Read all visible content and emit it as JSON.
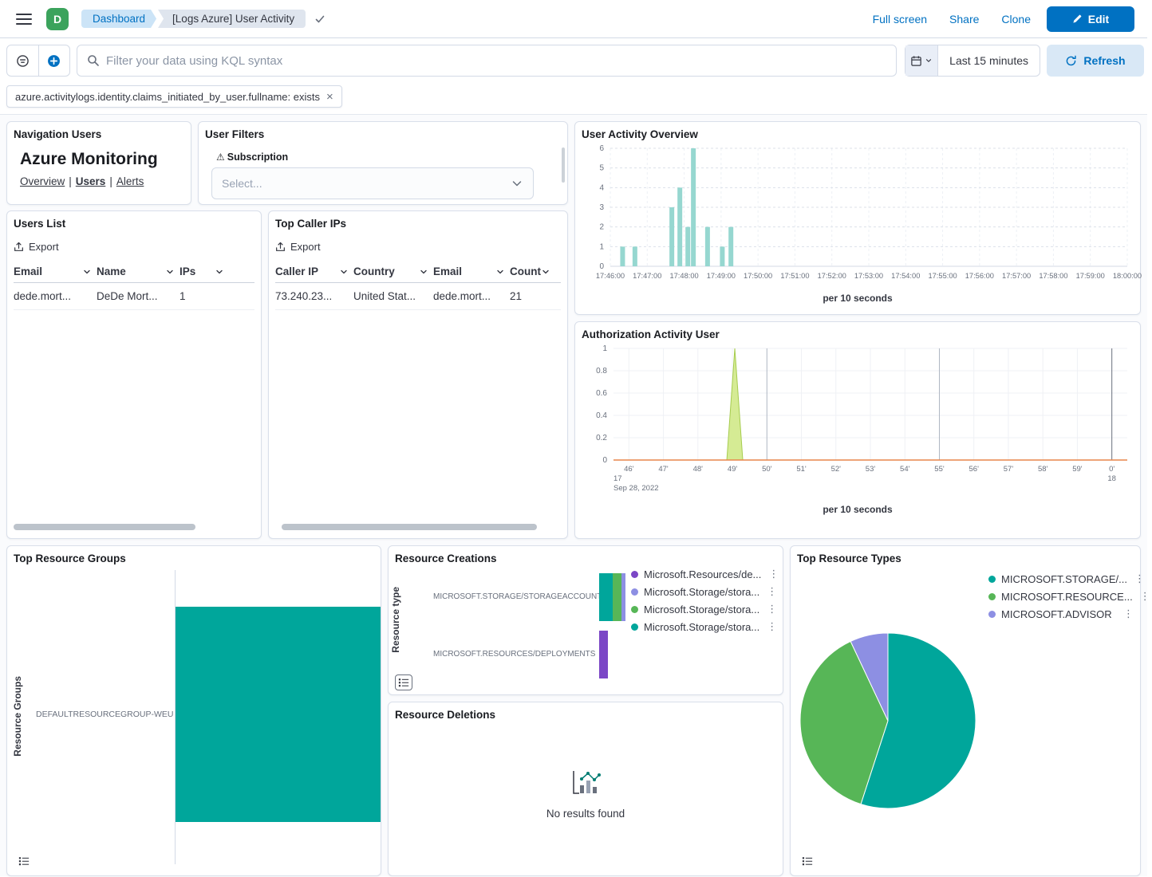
{
  "icons": {
    "kebab": "⋮",
    "close": "×",
    "warning": "⚠"
  },
  "colors": {
    "accent": "#0071C2",
    "teal": "#00A69B",
    "green": "#57B657",
    "lavender": "#8D8FE3",
    "purple": "#7B47C6",
    "avatar_green": "#3BA35C",
    "histogram_teal": "#96D7D0",
    "spike_green": "#D5EB94",
    "baseline_orange": "#E8864B"
  },
  "header": {
    "space_initial": "D",
    "breadcrumb_dashboard": "Dashboard",
    "breadcrumb_current": "[Logs Azure] User Activity",
    "full_screen": "Full screen",
    "share": "Share",
    "clone": "Clone",
    "edit": "Edit"
  },
  "query_bar": {
    "search_placeholder": "Filter your data using KQL syntax",
    "time_range": "Last 15 minutes",
    "refresh": "Refresh",
    "filter_pill": "azure.activitylogs.identity.claims_initiated_by_user.fullname: exists"
  },
  "nav_panel": {
    "title": "Navigation Users",
    "heading": "Azure Monitoring",
    "link_overview": "Overview",
    "link_users": "Users",
    "link_alerts": "Alerts",
    "separator": "|"
  },
  "user_filters_panel": {
    "title": "User Filters",
    "field_label": "Subscription",
    "select_placeholder": "Select..."
  },
  "users_list_panel": {
    "title": "Users List",
    "export_label": "Export",
    "columns": [
      "Email",
      "Name",
      "IPs"
    ],
    "rows": [
      [
        "dede.mort...",
        "DeDe Mort...",
        "1"
      ]
    ]
  },
  "top_caller_panel": {
    "title": "Top Caller IPs",
    "export_label": "Export",
    "columns": [
      "Caller IP",
      "Country",
      "Email",
      "Count"
    ],
    "rows": [
      [
        "73.240.23...",
        "United Stat...",
        "dede.mort...",
        "21"
      ]
    ]
  },
  "resource_deletions_panel": {
    "title": "Resource Deletions",
    "empty_message": "No results found"
  },
  "chart_data": [
    {
      "id": "user_activity_overview",
      "type": "bar",
      "title": "User Activity Overview",
      "caption": "per 10 seconds",
      "ylim": [
        0,
        6
      ],
      "y_ticks": [
        0,
        1,
        2,
        3,
        4,
        5,
        6
      ],
      "x_ticks": [
        "17:46:00",
        "17:47:00",
        "17:48:00",
        "17:49:00",
        "17:50:00",
        "17:51:00",
        "17:52:00",
        "17:53:00",
        "17:54:00",
        "17:55:00",
        "17:56:00",
        "17:57:00",
        "17:58:00",
        "17:59:00",
        "18:00:00"
      ],
      "x_range_seconds": 840,
      "bar_interval_seconds": 10,
      "bar_color": "#96D7D0",
      "bars": [
        {
          "offset_s": 20,
          "value": 1
        },
        {
          "offset_s": 40,
          "value": 1
        },
        {
          "offset_s": 100,
          "value": 3
        },
        {
          "offset_s": 113,
          "value": 4
        },
        {
          "offset_s": 126,
          "value": 2
        },
        {
          "offset_s": 135,
          "value": 6
        },
        {
          "offset_s": 158,
          "value": 2
        },
        {
          "offset_s": 182,
          "value": 1
        },
        {
          "offset_s": 196,
          "value": 2
        }
      ]
    },
    {
      "id": "authorization_activity_user",
      "type": "area",
      "title": "Authorization Activity User",
      "caption": "per 10 seconds",
      "ylim": [
        0,
        1
      ],
      "y_ticks": [
        0,
        0.2,
        0.4,
        0.6,
        0.8,
        1
      ],
      "x_ticks": [
        "46'",
        "47'",
        "48'",
        "49'",
        "50'",
        "51'",
        "52'",
        "53'",
        "54'",
        "55'",
        "56'",
        "57'",
        "58'",
        "59'",
        "0'"
      ],
      "major_ticks": [
        "50'",
        "55'"
      ],
      "end_tick": "0'",
      "x_start_label": "17",
      "x_start_sublabel": "Sep 28, 2022",
      "x_end_label": "18",
      "spike": {
        "tick_index": 3,
        "peak": 1
      },
      "spike_fill": "#D5EB94",
      "spike_stroke": "#A6CC4E",
      "baseline_color": "#E8864B"
    },
    {
      "id": "top_resource_groups",
      "type": "horizontal_bar",
      "title": "Top Resource Groups",
      "ylabel": "Resource Groups",
      "categories": [
        "DEFAULTRESOURCEGROUP-WEU"
      ],
      "values": [
        1
      ],
      "bar_color": "#00A69B"
    },
    {
      "id": "resource_creations",
      "type": "horizontal_stacked_bar",
      "title": "Resource Creations",
      "ylabel": "Resource type",
      "categories": [
        "MICROSOFT.STORAGE/STORAGEACCOUNTS",
        "MICROSOFT.RESOURCES/DEPLOYMENTS"
      ],
      "series": [
        {
          "name": "Microsoft.Resources/de...",
          "color": "#7B47C6",
          "values": [
            0,
            2
          ]
        },
        {
          "name": "Microsoft.Storage/stora...",
          "color": "#8D8FE3",
          "values": [
            1,
            0
          ]
        },
        {
          "name": "Microsoft.Storage/stora...",
          "color": "#57B657",
          "values": [
            2,
            0
          ]
        },
        {
          "name": "Microsoft.Storage/stora...",
          "color": "#00A69B",
          "values": [
            3,
            0
          ]
        }
      ]
    },
    {
      "id": "top_resource_types",
      "type": "pie",
      "title": "Top Resource Types",
      "slices": [
        {
          "label": "MICROSOFT.STORAGE/...",
          "color": "#00A69B",
          "value": 55
        },
        {
          "label": "MICROSOFT.RESOURCE...",
          "color": "#57B657",
          "value": 38
        },
        {
          "label": "MICROSOFT.ADVISOR",
          "color": "#8D8FE3",
          "value": 7
        }
      ]
    }
  ]
}
